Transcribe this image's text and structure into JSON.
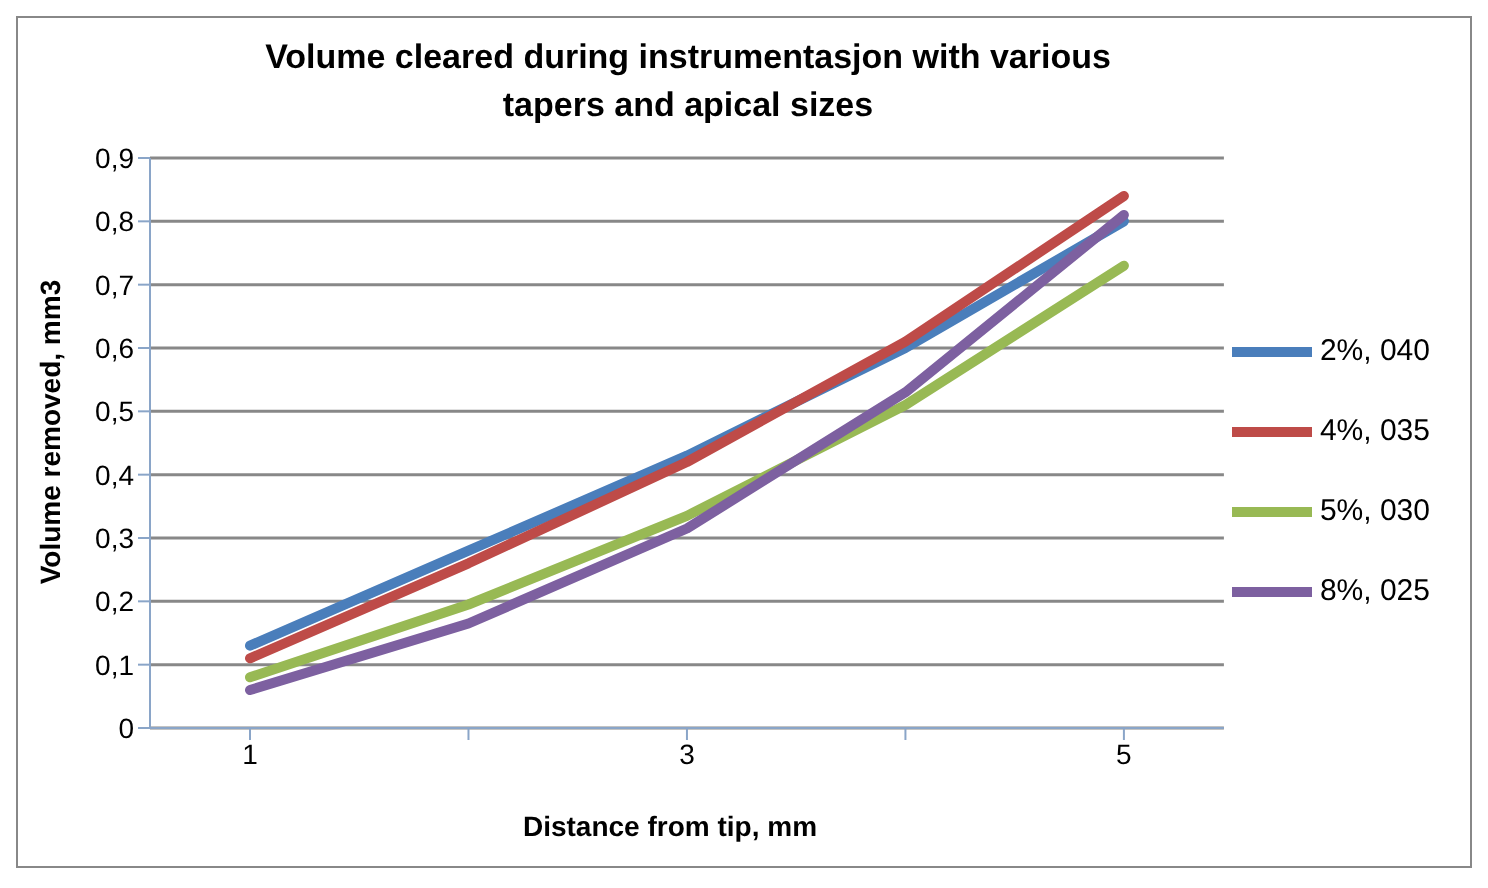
{
  "chart_data": {
    "type": "line",
    "title": "Volume cleared during instrumentasjon with various tapers and apical sizes",
    "xlabel": "Distance from tip, mm",
    "ylabel": "Volume removed, mm3",
    "categories": [
      "1",
      null,
      "3",
      null,
      "5"
    ],
    "series": [
      {
        "name": "2%, 040",
        "color": "#4a7ebb",
        "values": [
          0.13,
          0.28,
          0.43,
          0.6,
          0.8
        ]
      },
      {
        "name": "4%, 035",
        "color": "#be4b48",
        "values": [
          0.11,
          0.26,
          0.42,
          0.61,
          0.84
        ]
      },
      {
        "name": "5%, 030",
        "color": "#98b954",
        "values": [
          0.08,
          0.195,
          0.335,
          0.51,
          0.73
        ]
      },
      {
        "name": "8%, 025",
        "color": "#7d60a0",
        "values": [
          0.06,
          0.165,
          0.315,
          0.53,
          0.81
        ]
      }
    ],
    "ylim": [
      0,
      0.9
    ],
    "yticks": [
      0,
      {
        "value": 0.1,
        "label": "0,1"
      },
      {
        "value": 0.2,
        "label": "0,2"
      },
      {
        "value": 0.3,
        "label": "0,3"
      },
      {
        "value": 0.4,
        "label": "0,4"
      },
      {
        "value": 0.5,
        "label": "0,5"
      },
      {
        "value": 0.6,
        "label": "0,6"
      },
      {
        "value": 0.7,
        "label": "0,7"
      },
      {
        "value": 0.8,
        "label": "0,8"
      },
      {
        "value": 0.9,
        "label": "0,9"
      }
    ],
    "grid": "y",
    "legend": "right",
    "marker": "none",
    "line_style": "solid"
  }
}
